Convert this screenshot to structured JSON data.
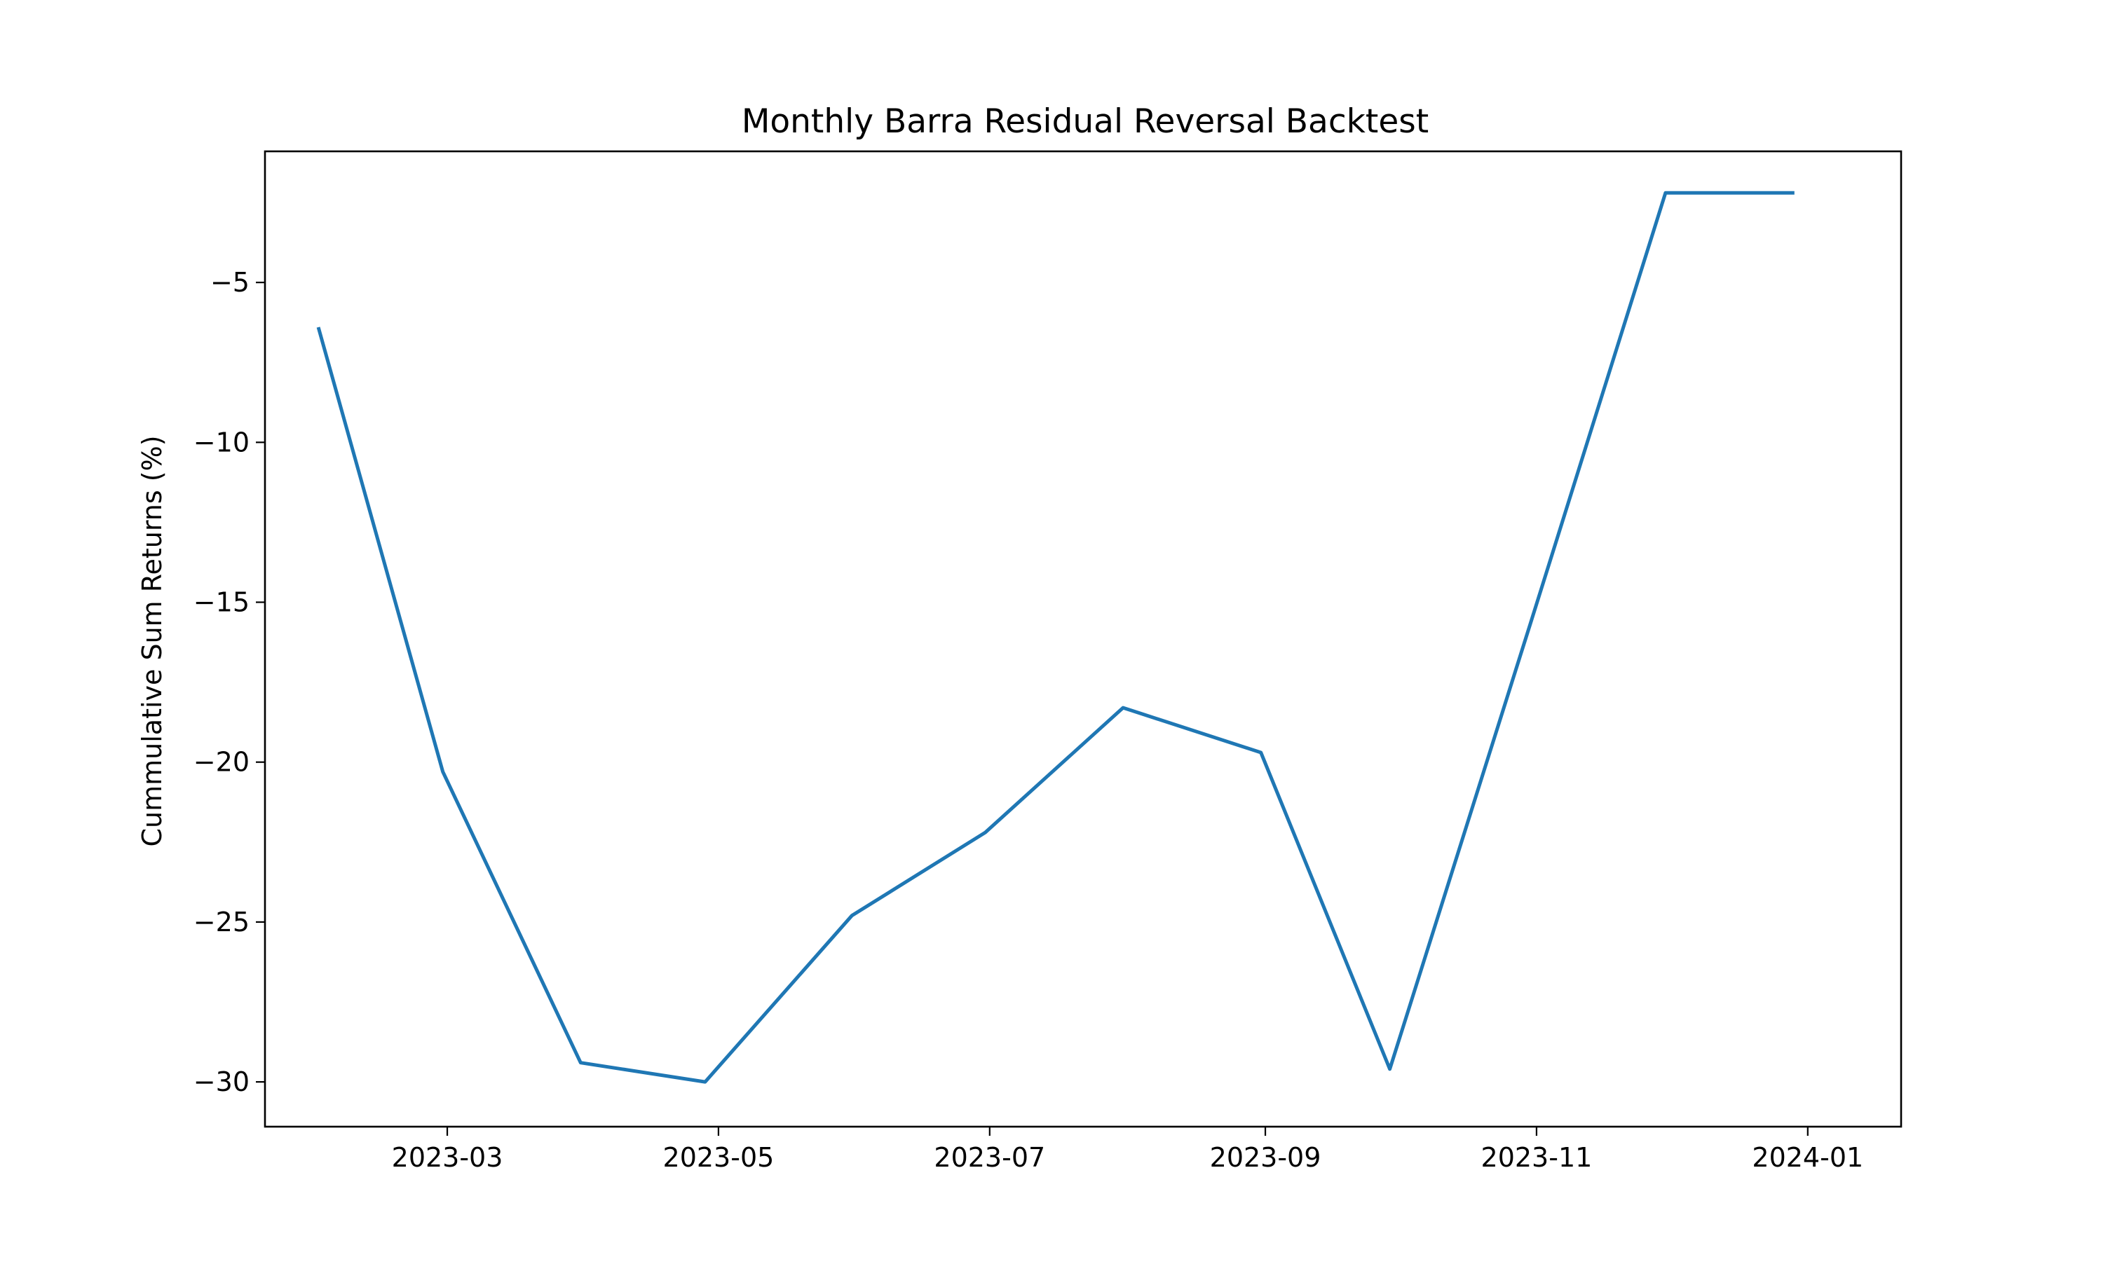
{
  "chart_data": {
    "type": "line",
    "title": "Monthly Barra Residual Reversal Backtest",
    "xlabel": "",
    "ylabel": "Cummulative Sum Returns (%)",
    "x_axis_type": "date",
    "xlim": [
      "2023-01-19",
      "2024-01-22"
    ],
    "ylim": [
      -31.4,
      -0.9
    ],
    "x_ticks": [
      {
        "date": "2023-03-01",
        "label": "2023-03"
      },
      {
        "date": "2023-05-01",
        "label": "2023-05"
      },
      {
        "date": "2023-07-01",
        "label": "2023-07"
      },
      {
        "date": "2023-09-01",
        "label": "2023-09"
      },
      {
        "date": "2023-11-01",
        "label": "2023-11"
      },
      {
        "date": "2024-01-01",
        "label": "2024-01"
      }
    ],
    "y_ticks": [
      {
        "value": -5,
        "label": "−5"
      },
      {
        "value": -10,
        "label": "−10"
      },
      {
        "value": -15,
        "label": "−15"
      },
      {
        "value": -20,
        "label": "−20"
      },
      {
        "value": -25,
        "label": "−25"
      },
      {
        "value": -30,
        "label": "−30"
      }
    ],
    "grid": false,
    "series": [
      {
        "color": "#1f77b4",
        "x": [
          "2023-01-31",
          "2023-02-28",
          "2023-03-31",
          "2023-04-28",
          "2023-05-31",
          "2023-06-30",
          "2023-07-31",
          "2023-08-31",
          "2023-09-29",
          "2023-10-31",
          "2023-11-30",
          "2023-12-29"
        ],
        "y": [
          -6.4,
          -20.3,
          -29.4,
          -30.0,
          -24.8,
          -22.2,
          -18.3,
          -19.7,
          -29.6,
          -15.5,
          -2.2,
          -2.2
        ]
      }
    ]
  }
}
